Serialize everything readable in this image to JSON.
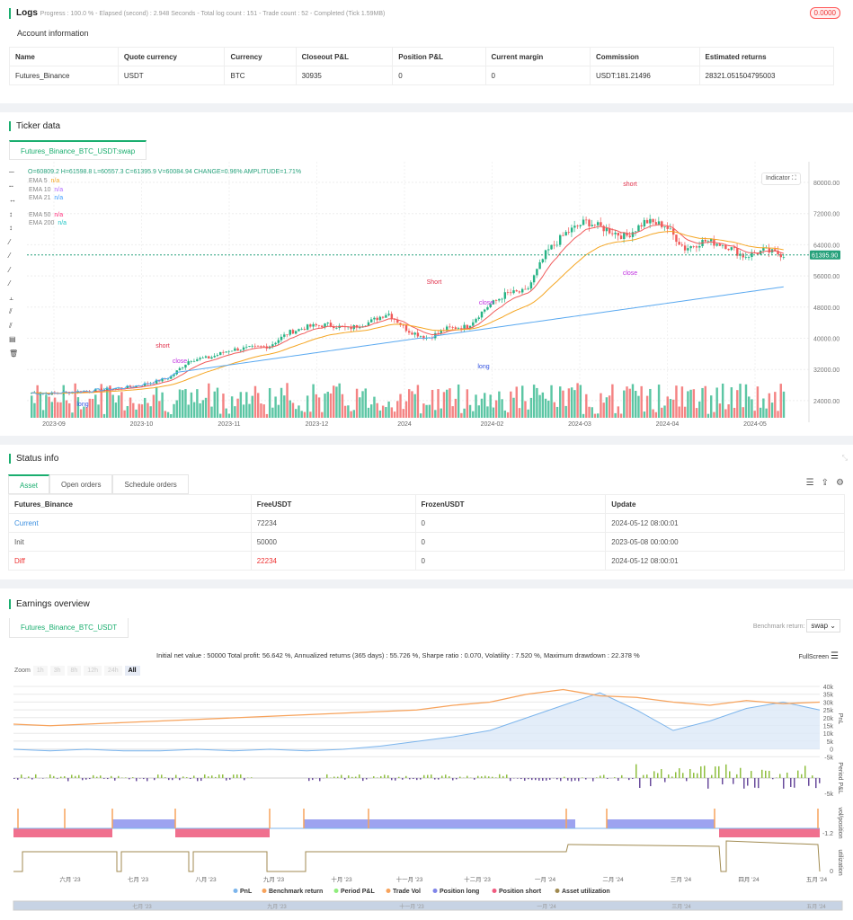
{
  "logs": {
    "title": "Logs",
    "summary": "Progress : 100.0 % - Elapsed (second) : 2.948  Seconds - Total log count : 151 - Trade count : 52 - Completed (Tick 1.59MB)",
    "badge": "0.0000"
  },
  "account": {
    "title": "Account information",
    "headers": [
      "Name",
      "Quote currency",
      "Currency",
      "Closeout P&L",
      "Position P&L",
      "Current margin",
      "Commission",
      "Estimated returns"
    ],
    "row": [
      "Futures_Binance",
      "USDT",
      "BTC",
      "30935",
      "0",
      "0",
      "USDT:181.21496",
      "28321.051504795003"
    ]
  },
  "ticker": {
    "title": "Ticker data",
    "tab": "Futures_Binance_BTC_USDT:swap",
    "ohlc": "O=60809.2 H=61598.8 L=60557.3 C=61395.9 V=60084.94 CHANGE=0.96% AMPLITUDE=1.71%",
    "indicator_button": "Indicator",
    "last_price": "61395.90",
    "legend": [
      {
        "name": "EMA 5",
        "value": "n/a",
        "color": "#f5a623"
      },
      {
        "name": "EMA 10",
        "value": "n/a",
        "color": "#b36bff"
      },
      {
        "name": "EMA 21",
        "value": "n/a",
        "color": "#3b9cff"
      },
      {
        "name": "EMA 50",
        "value": "n/a",
        "color": "#ff2d7a"
      },
      {
        "name": "EMA 200",
        "value": "n/a",
        "color": "#22c7c7"
      }
    ],
    "chart_data": {
      "type": "candlestick",
      "x_ticks": [
        "2023-09",
        "2023-10",
        "2023-11",
        "2023-12",
        "2024",
        "2024-02",
        "2024-03",
        "2024-04",
        "2024-05"
      ],
      "y_ticks": [
        80000,
        72000,
        64000,
        56000,
        48000,
        40000,
        32000,
        24000
      ],
      "ylim": [
        20000,
        84000
      ],
      "weekly_close": [
        26000,
        25800,
        26200,
        26500,
        27000,
        27500,
        28500,
        30000,
        34500,
        35000,
        37000,
        37500,
        38000,
        41500,
        43000,
        43500,
        42500,
        44000,
        46500,
        42000,
        40000,
        42500,
        43000,
        48000,
        51500,
        52000,
        62000,
        67000,
        70000,
        68000,
        66000,
        70000,
        69000,
        63000,
        65000,
        64000,
        61000,
        62500,
        61400
      ],
      "markers": [
        "short",
        "close",
        "long",
        "Short",
        "close",
        "long",
        "close",
        "short"
      ]
    },
    "up_color": "#26b385",
    "down_color": "#f05a5a"
  },
  "status": {
    "title": "Status info",
    "tabs": [
      "Asset",
      "Open orders",
      "Schedule orders"
    ],
    "headers": [
      "Futures_Binance",
      "FreeUSDT",
      "FrozenUSDT",
      "Update"
    ],
    "rows": [
      [
        "Current",
        "72234",
        "0",
        "2024-05-12 08:00:01"
      ],
      [
        "Init",
        "50000",
        "0",
        "2023-05-08 00:00:00"
      ],
      [
        "Diff",
        "22234",
        "0",
        "2024-05-12 08:00:01"
      ]
    ]
  },
  "earnings": {
    "title": "Earnings overview",
    "tab": "Futures_Binance_BTC_USDT",
    "benchmark_label": "Benchmark return:",
    "benchmark_value": "swap",
    "summary": "Initial net value : 50000 Total profit: 56.642 %, Annualized returns (365 days) : 55.726 %, Sharpe ratio : 0.070, Volatility : 7.520 %, Maximum drawdown : 22.378 %",
    "fullscreen": "FullScreen",
    "zoom_label": "Zoom",
    "zoom_options": [
      "1h",
      "3h",
      "8h",
      "12h",
      "24h",
      "All"
    ],
    "pnl_ticks": [
      "40k",
      "35k",
      "30k",
      "25k",
      "20k",
      "15k",
      "10k",
      "5k",
      "0",
      "-5k"
    ],
    "period_ticks": [
      "-5k"
    ],
    "vol_ticks": [
      "-1.2"
    ],
    "util_ticks": [
      "0"
    ],
    "axis_titles": [
      "PnL",
      "Period P&L",
      "vol/position",
      "utilization"
    ],
    "x_ticks": [
      "六月 '23",
      "七月 '23",
      "八月 '23",
      "九月 '23",
      "十月 '23",
      "十一月 '23",
      "十二月 '23",
      "一月 '24",
      "二月 '24",
      "三月 '24",
      "四月 '24",
      "五月 '24"
    ],
    "nav_ticks": [
      "七月 '23",
      "九月 '23",
      "十一月 '23",
      "一月 '24",
      "三月 '24",
      "五月 '24"
    ],
    "legend": [
      {
        "name": "PnL",
        "color": "#7cb5ec"
      },
      {
        "name": "Benchmark return",
        "color": "#f7a35c"
      },
      {
        "name": "Period P&L",
        "color": "#90ed7d"
      },
      {
        "name": "Trade Vol",
        "color": "#f7a35c"
      },
      {
        "name": "Position long",
        "color": "#8085e9"
      },
      {
        "name": "Position short",
        "color": "#f15c80"
      },
      {
        "name": "Asset utilization",
        "color": "#a08a50"
      }
    ],
    "chart_data": {
      "type": "line",
      "pnl_k": [
        0,
        -1,
        0,
        -1,
        -1,
        0,
        -1,
        0,
        -1,
        0,
        2,
        5,
        8,
        12,
        20,
        28,
        36,
        25,
        12,
        18,
        26,
        30,
        25
      ],
      "benchmark_k": [
        16,
        15,
        16,
        17,
        18,
        19,
        20,
        21,
        22,
        23,
        24,
        25,
        28,
        30,
        35,
        38,
        34,
        33,
        30,
        28,
        31,
        29,
        30
      ]
    }
  }
}
